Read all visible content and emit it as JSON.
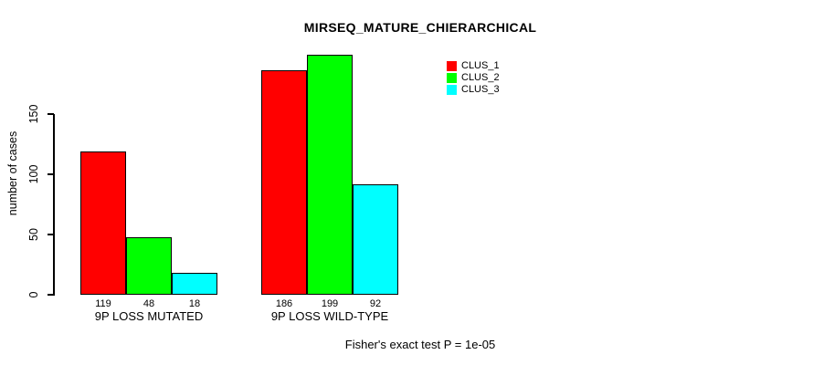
{
  "chart_data": {
    "type": "bar",
    "title": "MIRSEQ_MATURE_CHIERARCHICAL",
    "ylabel": "number of cases",
    "xlabel": "",
    "categories": [
      "9P LOSS MUTATED",
      "9P LOSS WILD-TYPE"
    ],
    "series": [
      {
        "name": "CLUS_1",
        "color": "#ff0000",
        "values": [
          119,
          186
        ]
      },
      {
        "name": "CLUS_2",
        "color": "#00ff00",
        "values": [
          48,
          199
        ]
      },
      {
        "name": "CLUS_3",
        "color": "#00ffff",
        "values": [
          18,
          92
        ]
      }
    ],
    "yticks": [
      0,
      50,
      100,
      150
    ],
    "ylim": [
      0,
      199
    ],
    "grid": false,
    "bar_value_labels_shown": true,
    "legend_position": "top-right",
    "annotation": "Fisher's exact test P = 1e-05",
    "axis_color": "#000000",
    "text_color": "#000000",
    "background_color": "#ffffff"
  }
}
